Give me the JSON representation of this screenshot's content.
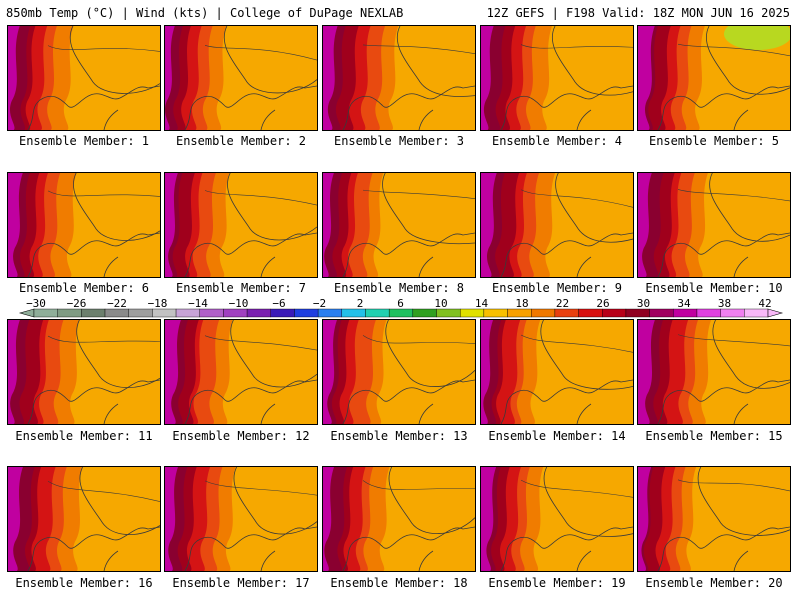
{
  "header": {
    "left": "850mb Temp (°C) | Wind (kts) | College of DuPage NEXLAB",
    "right": "12Z GEFS | F198 Valid: 18Z MON JUN 16 2025"
  },
  "panels": [
    {
      "label": "Ensemble Member: 1"
    },
    {
      "label": "Ensemble Member: 2"
    },
    {
      "label": "Ensemble Member: 3"
    },
    {
      "label": "Ensemble Member: 4"
    },
    {
      "label": "Ensemble Member: 5"
    },
    {
      "label": "Ensemble Member: 6"
    },
    {
      "label": "Ensemble Member: 7"
    },
    {
      "label": "Ensemble Member: 8"
    },
    {
      "label": "Ensemble Member: 9"
    },
    {
      "label": "Ensemble Member: 10"
    },
    {
      "label": "Ensemble Member: 11"
    },
    {
      "label": "Ensemble Member: 12"
    },
    {
      "label": "Ensemble Member: 13"
    },
    {
      "label": "Ensemble Member: 14"
    },
    {
      "label": "Ensemble Member: 15"
    },
    {
      "label": "Ensemble Member: 16"
    },
    {
      "label": "Ensemble Member: 17"
    },
    {
      "label": "Ensemble Member: 18"
    },
    {
      "label": "Ensemble Member: 19"
    },
    {
      "label": "Ensemble Member: 20"
    }
  ],
  "colorbar": {
    "labels": [
      "−30",
      "−26",
      "−22",
      "−18",
      "−14",
      "−10",
      "−6",
      "−2",
      "2",
      "6",
      "10",
      "14",
      "18",
      "22",
      "26",
      "30",
      "34",
      "38",
      "42"
    ],
    "colors": [
      "#8fae99",
      "#7f9b83",
      "#6c7f6d",
      "#8a8a8a",
      "#9e9e9e",
      "#c2c2c2",
      "#c7a3d6",
      "#b060c8",
      "#a040c0",
      "#7a20b0",
      "#3a1ab8",
      "#1f3fe0",
      "#2a7ff0",
      "#22c0e8",
      "#20d0b0",
      "#20c060",
      "#30a020",
      "#80c020",
      "#e0e000",
      "#f8c000",
      "#f8a000",
      "#f07800",
      "#e84010",
      "#d81010",
      "#b80018",
      "#900020",
      "#a00060",
      "#c000a0",
      "#e040e0",
      "#f080f0",
      "#f8b8f8"
    ]
  },
  "palette": {
    "orange": "#f6a800",
    "deep_orange": "#f07c00",
    "red_orange": "#e84a10",
    "red": "#d41414",
    "dark_red": "#a0001c",
    "maroon": "#8a0030",
    "magenta": "#c000a0",
    "yellow_green": "#b8d820",
    "contour": "#3a3a3a"
  }
}
